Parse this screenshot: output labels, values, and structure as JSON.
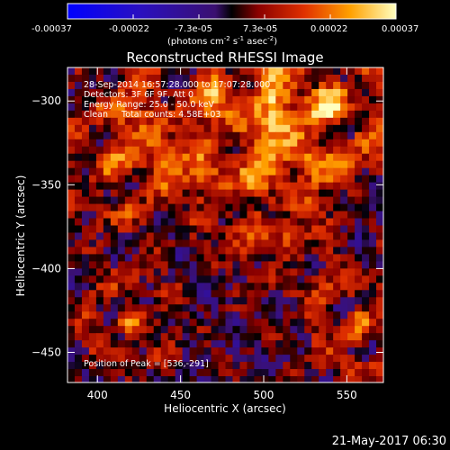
{
  "colorbar": {
    "ticks": [
      "-0.00037",
      "-0.00022",
      "-7.3e-05",
      "7.3e-05",
      "0.00022",
      "0.00037"
    ],
    "unit_label": "(photons cm",
    "unit_exp1": "-2",
    "unit_mid": " s",
    "unit_exp2": "-1",
    "unit_end": " asec",
    "unit_exp3": "-2",
    "unit_close": ")"
  },
  "chart_data": {
    "type": "heatmap",
    "title": "Reconstructed RHESSI Image",
    "xlabel": "Heliocentric X (arcsec)",
    "ylabel": "Heliocentric Y (arcsec)",
    "xlim": [
      382,
      572
    ],
    "ylim": [
      -468,
      -280
    ],
    "x_ticks": [
      400,
      450,
      500,
      550
    ],
    "y_ticks": [
      -300,
      -350,
      -400,
      -450
    ],
    "color_range": [
      -0.00037,
      0.00037
    ],
    "annotations": [
      "28-Sep-2014 16:57:28.000 to 17:07:28.000",
      "Detectors: 3F 6F 9F, Att 0",
      "Energy Range: 25.0 - 50.0 keV",
      "Clean     Total counts: 4.58E+03",
      "Position of Peak = [536,-291]"
    ],
    "peak_position": [
      536,
      -291
    ]
  },
  "footer": {
    "timestamp": "21-May-2017 06:30"
  }
}
